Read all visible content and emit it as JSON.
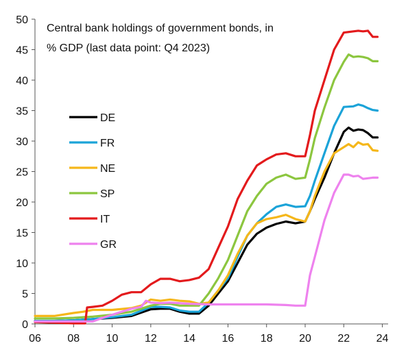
{
  "chart_data": {
    "type": "line",
    "title": "Central bank holdings of government bonds, in",
    "subtitle": "% GDP (last data point: Q4 2023)",
    "xlabel": "",
    "ylabel": "",
    "xlim": [
      2006,
      2024.3
    ],
    "ylim": [
      0,
      50
    ],
    "x_ticks": [
      2006,
      2008,
      2010,
      2012,
      2014,
      2016,
      2018,
      2020,
      2022,
      2024
    ],
    "x_tick_labels": [
      "06",
      "08",
      "10",
      "12",
      "14",
      "16",
      "18",
      "20",
      "22",
      "24"
    ],
    "y_ticks": [
      0,
      5,
      10,
      15,
      20,
      25,
      30,
      35,
      40,
      45,
      50
    ],
    "y_tick_labels": [
      "0",
      "5",
      "10",
      "15",
      "20",
      "25",
      "30",
      "35",
      "40",
      "45",
      "50"
    ],
    "grid": false,
    "legend_position": "left",
    "series": [
      {
        "name": "DE",
        "color": "#000000",
        "points": [
          [
            2006,
            0.5
          ],
          [
            2007,
            0.5
          ],
          [
            2008,
            0.6
          ],
          [
            2009,
            0.8
          ],
          [
            2010,
            1.0
          ],
          [
            2011,
            1.3
          ],
          [
            2012,
            2.4
          ],
          [
            2012.5,
            2.5
          ],
          [
            2013,
            2.5
          ],
          [
            2013.5,
            2.0
          ],
          [
            2014,
            1.7
          ],
          [
            2014.5,
            1.7
          ],
          [
            2015,
            3.0
          ],
          [
            2015.5,
            5.0
          ],
          [
            2016,
            7.0
          ],
          [
            2016.5,
            10.0
          ],
          [
            2017,
            13.0
          ],
          [
            2017.5,
            14.8
          ],
          [
            2018,
            15.8
          ],
          [
            2018.5,
            16.4
          ],
          [
            2019,
            16.8
          ],
          [
            2019.5,
            16.5
          ],
          [
            2020,
            16.8
          ],
          [
            2020.25,
            18.5
          ],
          [
            2020.5,
            20.5
          ],
          [
            2021,
            24.0
          ],
          [
            2021.5,
            28.0
          ],
          [
            2022,
            31.5
          ],
          [
            2022.25,
            32.2
          ],
          [
            2022.5,
            31.7
          ],
          [
            2022.75,
            31.9
          ],
          [
            2023,
            31.8
          ],
          [
            2023.25,
            31.3
          ],
          [
            2023.5,
            30.6
          ],
          [
            2023.75,
            30.6
          ]
        ]
      },
      {
        "name": "FR",
        "color": "#1ba3d8",
        "points": [
          [
            2006,
            0.5
          ],
          [
            2007,
            0.5
          ],
          [
            2008,
            0.6
          ],
          [
            2009,
            0.8
          ],
          [
            2010,
            1.1
          ],
          [
            2011,
            1.5
          ],
          [
            2012,
            2.8
          ],
          [
            2012.5,
            2.8
          ],
          [
            2013,
            2.7
          ],
          [
            2013.5,
            2.2
          ],
          [
            2014,
            2.0
          ],
          [
            2014.5,
            2.0
          ],
          [
            2015,
            3.5
          ],
          [
            2015.5,
            5.5
          ],
          [
            2016,
            7.5
          ],
          [
            2016.5,
            11.0
          ],
          [
            2017,
            14.5
          ],
          [
            2017.5,
            16.5
          ],
          [
            2018,
            18.0
          ],
          [
            2018.5,
            19.2
          ],
          [
            2019,
            19.6
          ],
          [
            2019.5,
            19.2
          ],
          [
            2020,
            19.3
          ],
          [
            2020.25,
            21.0
          ],
          [
            2020.5,
            23.5
          ],
          [
            2021,
            28.0
          ],
          [
            2021.5,
            32.5
          ],
          [
            2022,
            35.6
          ],
          [
            2022.5,
            35.7
          ],
          [
            2022.75,
            36.0
          ],
          [
            2023,
            35.8
          ],
          [
            2023.25,
            35.4
          ],
          [
            2023.5,
            35.1
          ],
          [
            2023.75,
            35.0
          ]
        ]
      },
      {
        "name": "NE",
        "color": "#f5b71a",
        "points": [
          [
            2006,
            1.3
          ],
          [
            2007,
            1.3
          ],
          [
            2008,
            1.8
          ],
          [
            2008.5,
            2.0
          ],
          [
            2009,
            2.3
          ],
          [
            2010,
            2.3
          ],
          [
            2011,
            2.6
          ],
          [
            2011.5,
            3.0
          ],
          [
            2012,
            4.0
          ],
          [
            2012.5,
            3.8
          ],
          [
            2013,
            4.0
          ],
          [
            2013.5,
            3.8
          ],
          [
            2014,
            3.7
          ],
          [
            2014.5,
            3.3
          ],
          [
            2015,
            3.5
          ],
          [
            2015.5,
            5.5
          ],
          [
            2016,
            8.0
          ],
          [
            2016.5,
            11.5
          ],
          [
            2017,
            14.5
          ],
          [
            2017.5,
            16.5
          ],
          [
            2018,
            17.2
          ],
          [
            2018.5,
            17.5
          ],
          [
            2019,
            17.9
          ],
          [
            2019.5,
            17.2
          ],
          [
            2020,
            16.8
          ],
          [
            2020.25,
            18.5
          ],
          [
            2020.5,
            21.0
          ],
          [
            2021,
            25.0
          ],
          [
            2021.5,
            28.0
          ],
          [
            2022,
            29.0
          ],
          [
            2022.25,
            29.5
          ],
          [
            2022.5,
            29.0
          ],
          [
            2022.75,
            29.8
          ],
          [
            2023,
            29.4
          ],
          [
            2023.25,
            29.5
          ],
          [
            2023.5,
            28.5
          ],
          [
            2023.75,
            28.4
          ]
        ]
      },
      {
        "name": "SP",
        "color": "#8cc63f",
        "points": [
          [
            2006,
            0.9
          ],
          [
            2007,
            0.9
          ],
          [
            2008,
            1.0
          ],
          [
            2009,
            1.2
          ],
          [
            2010,
            1.5
          ],
          [
            2011,
            2.0
          ],
          [
            2012,
            3.0
          ],
          [
            2012.5,
            3.3
          ],
          [
            2013,
            3.3
          ],
          [
            2013.5,
            3.0
          ],
          [
            2014,
            3.0
          ],
          [
            2014.5,
            3.0
          ],
          [
            2015,
            5.0
          ],
          [
            2015.5,
            7.5
          ],
          [
            2016,
            10.5
          ],
          [
            2016.5,
            14.5
          ],
          [
            2017,
            18.5
          ],
          [
            2017.5,
            21.0
          ],
          [
            2018,
            23.0
          ],
          [
            2018.5,
            24.0
          ],
          [
            2019,
            24.5
          ],
          [
            2019.5,
            23.8
          ],
          [
            2020,
            24.0
          ],
          [
            2020.25,
            27.0
          ],
          [
            2020.5,
            30.5
          ],
          [
            2021,
            35.5
          ],
          [
            2021.5,
            40.0
          ],
          [
            2022,
            43.0
          ],
          [
            2022.25,
            44.2
          ],
          [
            2022.5,
            43.8
          ],
          [
            2022.75,
            43.9
          ],
          [
            2023,
            43.8
          ],
          [
            2023.25,
            43.6
          ],
          [
            2023.5,
            43.1
          ],
          [
            2023.75,
            43.1
          ]
        ]
      },
      {
        "name": "IT",
        "color": "#e31a1c",
        "points": [
          [
            2006,
            0.3
          ],
          [
            2007,
            0.2
          ],
          [
            2008,
            0.1
          ],
          [
            2008.6,
            0.1
          ],
          [
            2008.7,
            2.7
          ],
          [
            2009,
            2.8
          ],
          [
            2009.5,
            3.0
          ],
          [
            2010,
            3.8
          ],
          [
            2010.5,
            4.8
          ],
          [
            2011,
            5.2
          ],
          [
            2011.5,
            5.2
          ],
          [
            2012,
            6.5
          ],
          [
            2012.5,
            7.4
          ],
          [
            2013,
            7.4
          ],
          [
            2013.5,
            7.0
          ],
          [
            2014,
            7.2
          ],
          [
            2014.5,
            7.6
          ],
          [
            2015,
            9.0
          ],
          [
            2015.5,
            12.5
          ],
          [
            2016,
            16.0
          ],
          [
            2016.5,
            20.5
          ],
          [
            2017,
            23.5
          ],
          [
            2017.5,
            26.0
          ],
          [
            2018,
            27.0
          ],
          [
            2018.5,
            27.8
          ],
          [
            2019,
            28.0
          ],
          [
            2019.5,
            27.5
          ],
          [
            2020,
            27.5
          ],
          [
            2020.25,
            31.0
          ],
          [
            2020.5,
            35.0
          ],
          [
            2021,
            40.0
          ],
          [
            2021.5,
            45.0
          ],
          [
            2022,
            47.8
          ],
          [
            2022.5,
            48.0
          ],
          [
            2022.75,
            48.1
          ],
          [
            2023,
            48.0
          ],
          [
            2023.25,
            48.1
          ],
          [
            2023.5,
            47.1
          ],
          [
            2023.75,
            47.1
          ]
        ]
      },
      {
        "name": "GR",
        "color": "#ee82ee",
        "points": [
          [
            2006,
            0.4
          ],
          [
            2007,
            0.4
          ],
          [
            2008,
            0.4
          ],
          [
            2009,
            0.4
          ],
          [
            2009.5,
            1.0
          ],
          [
            2010,
            1.5
          ],
          [
            2010.5,
            2.0
          ],
          [
            2011,
            2.5
          ],
          [
            2011.5,
            2.8
          ],
          [
            2011.75,
            3.8
          ],
          [
            2012,
            3.5
          ],
          [
            2012.5,
            3.4
          ],
          [
            2013,
            3.5
          ],
          [
            2014,
            3.3
          ],
          [
            2015,
            3.2
          ],
          [
            2016,
            3.2
          ],
          [
            2017,
            3.2
          ],
          [
            2018,
            3.2
          ],
          [
            2019,
            3.1
          ],
          [
            2019.5,
            3.0
          ],
          [
            2020,
            3.0
          ],
          [
            2020.25,
            8.0
          ],
          [
            2020.5,
            11.0
          ],
          [
            2021,
            17.0
          ],
          [
            2021.5,
            21.5
          ],
          [
            2022,
            24.5
          ],
          [
            2022.25,
            24.5
          ],
          [
            2022.5,
            24.2
          ],
          [
            2022.75,
            24.3
          ],
          [
            2023,
            23.8
          ],
          [
            2023.25,
            23.9
          ],
          [
            2023.5,
            24.0
          ],
          [
            2023.75,
            24.0
          ]
        ]
      }
    ]
  }
}
